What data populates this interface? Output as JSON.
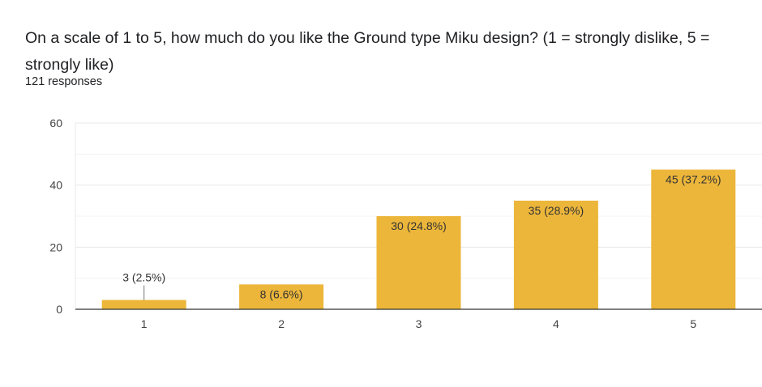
{
  "question": {
    "title": "On a scale of 1 to 5, how much do you like the Ground type Miku design? (1 = strongly dislike, 5 = strongly like)",
    "responses": "121 responses"
  },
  "colors": {
    "bar": "#ecb63a",
    "grid": "#e8e8e8",
    "axis": "#333333"
  },
  "chart_data": {
    "type": "bar",
    "categories": [
      "1",
      "2",
      "3",
      "4",
      "5"
    ],
    "values": [
      3,
      8,
      30,
      35,
      45
    ],
    "data_labels": [
      "3 (2.5%)",
      "8 (6.6%)",
      "30 (24.8%)",
      "35 (28.9%)",
      "45 (37.2%)"
    ],
    "yticks": [
      0,
      20,
      40,
      60
    ],
    "ylim": [
      0,
      60
    ],
    "grid": true,
    "legend": "none",
    "title": "On a scale of 1 to 5, how much do you like the Ground type Miku design? (1 = strongly dislike, 5 = strongly like)",
    "xlabel": "",
    "ylabel": ""
  }
}
